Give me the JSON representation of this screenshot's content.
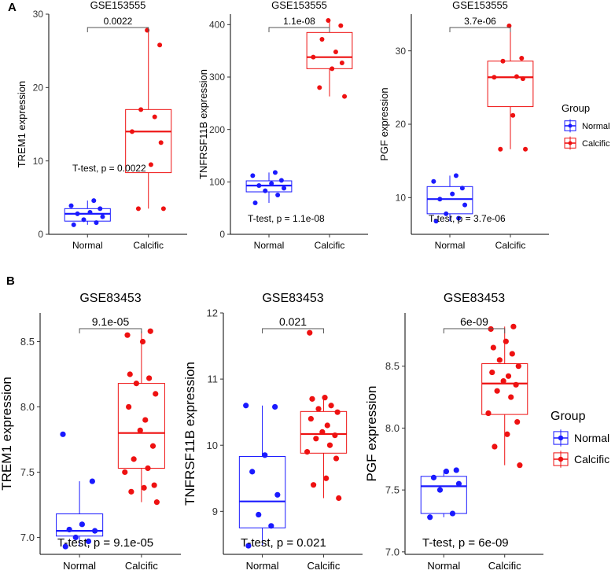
{
  "panel_labels": [
    "A",
    "B"
  ],
  "group_colors": {
    "Normal": "#1a1aff",
    "Calcific": "#ee1111"
  },
  "legend": {
    "title": "Group",
    "items": [
      "Normal",
      "Calcific"
    ]
  },
  "chart_data": [
    {
      "type": "box",
      "panel": "A",
      "title": "GSE153555",
      "ylabel": "TREM1 expression",
      "categories": [
        "Normal",
        "Calcific"
      ],
      "ylim": [
        0,
        30
      ],
      "yticks": [
        0,
        10,
        20,
        30
      ],
      "pvalue_label": "0.0022",
      "test_label": "T-test, p = 0.0022",
      "series": [
        {
          "name": "Normal",
          "box": {
            "min": 1.3,
            "q1": 1.8,
            "median": 2.8,
            "q3": 3.5,
            "max": 4.6
          },
          "points": [
            1.3,
            1.6,
            2.0,
            2.4,
            2.8,
            3.0,
            3.5,
            3.9,
            4.6
          ]
        },
        {
          "name": "Calcific",
          "box": {
            "min": 3.5,
            "q1": 8.4,
            "median": 14.0,
            "q3": 17.0,
            "max": 27.8
          },
          "points": [
            3.5,
            3.5,
            9.5,
            12.5,
            14.0,
            16.0,
            17.0,
            25.8,
            27.8
          ]
        }
      ]
    },
    {
      "type": "box",
      "panel": "A",
      "title": "GSE153555",
      "ylabel": "TNFRSF11B expression",
      "categories": [
        "Normal",
        "Calcific"
      ],
      "ylim": [
        0,
        420
      ],
      "yticks": [
        0,
        100,
        200,
        300,
        400
      ],
      "pvalue_label": "1.1e-08",
      "test_label": "T-test, p = 1.1e-08",
      "series": [
        {
          "name": "Normal",
          "box": {
            "min": 60,
            "q1": 81,
            "median": 93,
            "q3": 102,
            "max": 118
          },
          "points": [
            60,
            75,
            83,
            88,
            93,
            97,
            103,
            112,
            118
          ]
        },
        {
          "name": "Calcific",
          "box": {
            "min": 263,
            "q1": 316,
            "median": 338,
            "q3": 385,
            "max": 408
          },
          "points": [
            263,
            280,
            316,
            327,
            338,
            348,
            372,
            398,
            408
          ]
        }
      ]
    },
    {
      "type": "box",
      "panel": "A",
      "title": "GSE153555",
      "ylabel": "PGF expression",
      "categories": [
        "Normal",
        "Calcific"
      ],
      "ylim": [
        5,
        35
      ],
      "yticks": [
        10,
        20,
        30
      ],
      "pvalue_label": "3.7e-06",
      "test_label": "T-test, p = 3.7e-06",
      "series": [
        {
          "name": "Normal",
          "box": {
            "min": 6.8,
            "q1": 7.8,
            "median": 9.8,
            "q3": 11.5,
            "max": 13.0
          },
          "points": [
            6.8,
            7.2,
            7.8,
            9.0,
            9.8,
            10.5,
            11.3,
            12.2,
            13.0
          ]
        },
        {
          "name": "Calcific",
          "box": {
            "min": 16.6,
            "q1": 22.4,
            "median": 26.4,
            "q3": 28.6,
            "max": 33.4
          },
          "points": [
            16.6,
            16.6,
            21.2,
            26.2,
            26.4,
            26.5,
            28.6,
            29.0,
            33.4
          ]
        }
      ]
    },
    {
      "type": "box",
      "panel": "B",
      "title": "GSE83453",
      "ylabel": "TREM1 expression",
      "categories": [
        "Normal",
        "Calcific"
      ],
      "ylim": [
        6.87,
        8.72
      ],
      "yticks": [
        7.0,
        7.5,
        8.0,
        8.5
      ],
      "tick_format": "1",
      "pvalue_label": "9.1e-05",
      "test_label": "T-test, p = 9.1e-05",
      "series": [
        {
          "name": "Normal",
          "box": {
            "min": 6.93,
            "q1": 7.01,
            "median": 7.05,
            "q3": 7.18,
            "max": 7.43
          },
          "points": [
            6.93,
            6.97,
            7.0,
            7.05,
            7.06,
            7.1,
            7.43,
            7.79
          ]
        },
        {
          "name": "Calcific",
          "box": {
            "min": 7.27,
            "q1": 7.53,
            "median": 7.8,
            "q3": 8.18,
            "max": 8.58
          },
          "points": [
            7.27,
            7.35,
            7.38,
            7.4,
            7.5,
            7.53,
            7.6,
            7.7,
            7.82,
            7.9,
            8.0,
            8.1,
            8.18,
            8.22,
            8.25,
            8.5,
            8.55,
            8.58
          ]
        }
      ]
    },
    {
      "type": "box",
      "panel": "B",
      "title": "GSE83453",
      "ylabel": "TNFRSF11B expression",
      "categories": [
        "Normal",
        "Calcific"
      ],
      "ylim": [
        8.35,
        12.0
      ],
      "yticks": [
        9,
        10,
        11,
        12
      ],
      "tick_format": "0",
      "pvalue_label": "0.021",
      "test_label": "T-test, p = 0.021",
      "series": [
        {
          "name": "Normal",
          "box": {
            "min": 8.48,
            "q1": 8.75,
            "median": 9.15,
            "q3": 9.83,
            "max": 10.6
          },
          "points": [
            8.48,
            8.78,
            8.95,
            9.25,
            9.6,
            9.85,
            10.58,
            10.6
          ]
        },
        {
          "name": "Calcific",
          "box": {
            "min": 9.2,
            "q1": 9.88,
            "median": 10.17,
            "q3": 10.51,
            "max": 10.72
          },
          "points": [
            9.2,
            9.4,
            9.5,
            9.8,
            9.9,
            10.0,
            10.1,
            10.15,
            10.2,
            10.3,
            10.4,
            10.5,
            10.55,
            10.6,
            10.7,
            10.72,
            11.7
          ]
        }
      ]
    },
    {
      "type": "box",
      "panel": "B",
      "title": "GSE83453",
      "ylabel": "PGF expression",
      "categories": [
        "Normal",
        "Calcific"
      ],
      "ylim": [
        6.98,
        8.93
      ],
      "yticks": [
        7.0,
        7.5,
        8.0,
        8.5
      ],
      "tick_format": "1",
      "pvalue_label": "6e-09",
      "test_label": "T-test, p = 6e-09",
      "series": [
        {
          "name": "Normal",
          "box": {
            "min": 7.28,
            "q1": 7.31,
            "median": 7.53,
            "q3": 7.61,
            "max": 7.66
          },
          "points": [
            7.28,
            7.31,
            7.5,
            7.55,
            7.6,
            7.65,
            7.66
          ]
        },
        {
          "name": "Calcific",
          "box": {
            "min": 7.7,
            "q1": 8.11,
            "median": 8.36,
            "q3": 8.52,
            "max": 8.82
          },
          "points": [
            7.7,
            7.85,
            7.95,
            8.05,
            8.12,
            8.25,
            8.3,
            8.35,
            8.38,
            8.42,
            8.45,
            8.5,
            8.55,
            8.6,
            8.65,
            8.7,
            8.8,
            8.82
          ]
        }
      ]
    }
  ]
}
